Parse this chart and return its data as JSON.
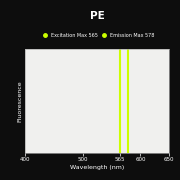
{
  "title": "PE",
  "xlabel": "Wavelength (nm)",
  "ylabel": "Fluorescence",
  "outer_bg_color": "#0d0d0d",
  "plot_bg_color": "#f0f0ee",
  "excitation_wavelength": 565,
  "emission_wavelength": 578,
  "line_color": "#ccff00",
  "line_width": 1.5,
  "xmin": 400,
  "xmax": 650,
  "xticks": [
    400,
    500,
    565,
    600,
    650
  ],
  "xtick_labels": [
    "400",
    "500",
    "565",
    "600",
    "650"
  ],
  "legend_excitation": "Excitation Max 565",
  "legend_emission": "Emission Max 578",
  "title_fontsize": 7.5,
  "label_fontsize": 4.5,
  "tick_fontsize": 4,
  "legend_fontsize": 3.5,
  "spine_color": "#aaaaaa"
}
